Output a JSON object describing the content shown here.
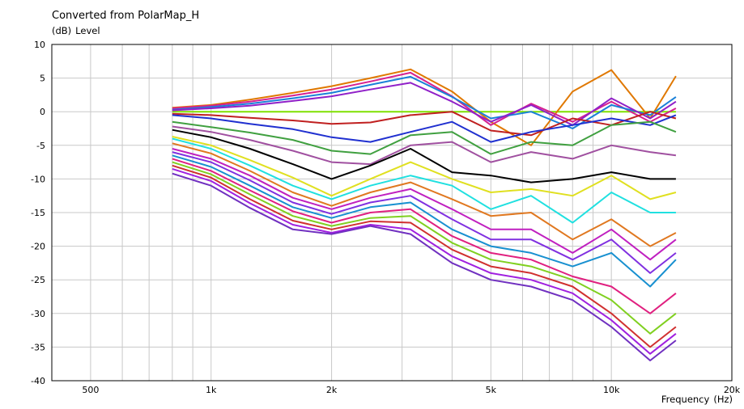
{
  "chart_data": {
    "type": "line",
    "title": "Converted from PolarMap_H",
    "ylabel_unit": "(dB)",
    "ylabel": "Level",
    "xlabel": "Frequency",
    "xlabel_unit": "(Hz)",
    "x_scale": "log",
    "xlim": [
      400,
      20000
    ],
    "ylim": [
      -40,
      10
    ],
    "grid": true,
    "legend": "none",
    "x_tick_labels": [
      {
        "value": 500,
        "label": "500"
      },
      {
        "value": 1000,
        "label": "1k"
      },
      {
        "value": 2000,
        "label": "2k"
      },
      {
        "value": 5000,
        "label": "5k"
      },
      {
        "value": 10000,
        "label": "10k"
      },
      {
        "value": 20000,
        "label": "20k"
      }
    ],
    "y_ticks": [
      10,
      5,
      0,
      -5,
      -10,
      -15,
      -20,
      -25,
      -30,
      -35,
      -40
    ],
    "x": [
      800,
      1000,
      1250,
      1600,
      2000,
      2500,
      3150,
      4000,
      5000,
      6300,
      8000,
      10000,
      12500,
      14500
    ],
    "series": [
      {
        "color": "#7fe000",
        "values": [
          0,
          0,
          0,
          0,
          0,
          0,
          0,
          0,
          0,
          0,
          0,
          0,
          0,
          0
        ]
      },
      {
        "color": "#e07800",
        "values": [
          0.6,
          1,
          1.8,
          2.8,
          3.8,
          5,
          6.3,
          3,
          -1.5,
          -5,
          3,
          6.2,
          -1,
          5.3
        ]
      },
      {
        "color": "#d62090",
        "values": [
          0.5,
          0.9,
          1.5,
          2.4,
          3.3,
          4.5,
          5.8,
          2.3,
          -2,
          1.2,
          -1.5,
          1.5,
          -1.5,
          0.5
        ]
      },
      {
        "color": "#1a80d8",
        "values": [
          0.3,
          0.7,
          1.2,
          2,
          2.8,
          4,
          5.2,
          2.2,
          -1,
          0,
          -2.5,
          1,
          -0.5,
          2.2
        ]
      },
      {
        "color": "#9020c8",
        "values": [
          0.2,
          0.5,
          0.9,
          1.6,
          2.3,
          3.3,
          4.3,
          1.5,
          -1.5,
          1,
          -2,
          2,
          -1,
          1.5
        ]
      },
      {
        "color": "#c02020",
        "values": [
          -0.3,
          -0.5,
          -0.9,
          -1.3,
          -1.8,
          -1.6,
          -0.5,
          0,
          -2.8,
          -3.5,
          -1,
          -2,
          0,
          -1
        ]
      },
      {
        "color": "#2030d0",
        "values": [
          -0.5,
          -1,
          -1.8,
          -2.6,
          -3.8,
          -4.5,
          -3,
          -1.5,
          -4.5,
          -3,
          -2,
          -1,
          -2,
          -0.5
        ]
      },
      {
        "color": "#40a040",
        "values": [
          -1.5,
          -2.3,
          -3.1,
          -4.2,
          -5.8,
          -6.3,
          -3.5,
          -3,
          -6.3,
          -4.5,
          -5,
          -2,
          -1.5,
          -3
        ]
      },
      {
        "color": "#a050a0",
        "values": [
          -2.2,
          -3,
          -4.2,
          -5.8,
          -7.5,
          -7.8,
          -5,
          -4.5,
          -7.5,
          -6,
          -7,
          -5,
          -6,
          -6.5
        ]
      },
      {
        "color": "#000000",
        "values": [
          -2.7,
          -3.8,
          -5.5,
          -7.8,
          -10,
          -8,
          -5.5,
          -9,
          -9.5,
          -10.5,
          -10,
          -9,
          -10,
          -10
        ]
      },
      {
        "color": "#e0e020",
        "values": [
          -3.7,
          -5,
          -7.2,
          -9.8,
          -12.5,
          -10,
          -7.5,
          -10,
          -12,
          -11.5,
          -12.5,
          -9.5,
          -13,
          -12
        ]
      },
      {
        "color": "#20e0e0",
        "values": [
          -4,
          -5.5,
          -8,
          -11,
          -13,
          -11,
          -9.5,
          -11,
          -14.5,
          -12.5,
          -16.5,
          -12,
          -15,
          -15
        ]
      },
      {
        "color": "#e07820",
        "values": [
          -4.7,
          -6.2,
          -8.8,
          -12,
          -14,
          -12,
          -10.5,
          -13,
          -15.5,
          -15,
          -19,
          -16,
          -20,
          -18
        ]
      },
      {
        "color": "#c020c0",
        "values": [
          -5.5,
          -7,
          -9.5,
          -12.8,
          -14.5,
          -12.8,
          -11.5,
          -14.5,
          -17.5,
          -17.5,
          -21,
          -17.5,
          -22,
          -19
        ]
      },
      {
        "color": "#8030e0",
        "values": [
          -6,
          -7.5,
          -10.2,
          -13.5,
          -15.2,
          -13.5,
          -12.5,
          -16,
          -19,
          -19,
          -22,
          -19,
          -24,
          -21
        ]
      },
      {
        "color": "#1890d0",
        "values": [
          -6.5,
          -8.2,
          -11,
          -14.2,
          -15.8,
          -14.2,
          -13.5,
          -17.5,
          -20,
          -21,
          -23,
          -21,
          -26,
          -22
        ]
      },
      {
        "color": "#e02080",
        "values": [
          -7,
          -8.8,
          -11.7,
          -14.8,
          -16.5,
          -15,
          -14.5,
          -18.5,
          -21,
          -22,
          -24.5,
          -26,
          -30,
          -27
        ]
      },
      {
        "color": "#80d020",
        "values": [
          -7.5,
          -9.3,
          -12.3,
          -15.5,
          -17,
          -15.8,
          -15.5,
          -19.5,
          -22,
          -23,
          -25,
          -28,
          -33,
          -30
        ]
      },
      {
        "color": "#d03030",
        "values": [
          -8,
          -9.8,
          -13,
          -16.2,
          -17.5,
          -16.3,
          -16.5,
          -20.5,
          -23,
          -24,
          -26,
          -30,
          -35,
          -32
        ]
      },
      {
        "color": "#a020e0",
        "values": [
          -8.5,
          -10.3,
          -13.6,
          -16.8,
          -18,
          -16.8,
          -17.5,
          -21.5,
          -24,
          -25,
          -27,
          -31,
          -36,
          -33
        ]
      },
      {
        "color": "#7030c0",
        "values": [
          -9.2,
          -11,
          -14.3,
          -17.5,
          -18.2,
          -17,
          -18.2,
          -22.5,
          -25,
          -26,
          -28,
          -32,
          -37,
          -34
        ]
      }
    ]
  }
}
